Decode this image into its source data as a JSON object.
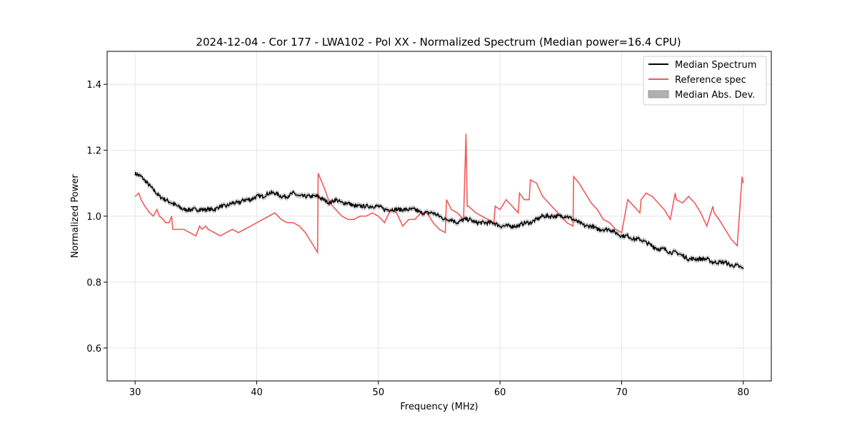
{
  "chart_data": {
    "type": "line",
    "title": "2024-12-04 - Cor 177 - LWA102 - Pol XX - Normalized Spectrum (Median power=16.4 CPU)",
    "xlabel": "Frequency (MHz)",
    "ylabel": "Normalized Power",
    "xlim": [
      27.7,
      82.3
    ],
    "ylim": [
      0.5,
      1.5
    ],
    "xticks": [
      30,
      40,
      50,
      60,
      70,
      80
    ],
    "yticks": [
      0.6,
      0.8,
      1.0,
      1.2,
      1.4
    ],
    "xtick_labels": [
      "30",
      "40",
      "50",
      "60",
      "70",
      "80"
    ],
    "ytick_labels": [
      "0.6",
      "0.8",
      "1.0",
      "1.2",
      "1.4"
    ],
    "grid": true,
    "legend_position": "top-right",
    "series": [
      {
        "name": "Median Spectrum",
        "color": "#000000",
        "x": [
          30,
          30.5,
          31,
          31.5,
          32,
          32.5,
          33,
          33.5,
          34,
          34.5,
          35,
          35.5,
          36,
          36.5,
          37,
          37.5,
          38,
          38.5,
          39,
          39.5,
          40,
          40.5,
          41,
          41.5,
          42,
          42.5,
          43,
          43.5,
          44,
          44.5,
          45,
          45.5,
          46,
          46.5,
          47,
          47.5,
          48,
          48.5,
          49,
          49.5,
          50,
          50.5,
          51,
          51.5,
          52,
          52.5,
          53,
          53.5,
          54,
          54.5,
          55,
          55.5,
          56,
          56.5,
          57,
          57.5,
          58,
          58.5,
          59,
          59.5,
          60,
          60.5,
          61,
          61.5,
          62,
          62.5,
          63,
          63.5,
          64,
          64.5,
          65,
          65.5,
          66,
          66.5,
          67,
          67.5,
          68,
          68.5,
          69,
          69.5,
          70,
          70.5,
          71,
          71.5,
          72,
          72.5,
          73,
          73.5,
          74,
          74.5,
          75,
          75.5,
          76,
          76.5,
          77,
          77.5,
          78,
          78.5,
          79,
          79.5,
          80
        ],
        "values": [
          1.13,
          1.12,
          1.1,
          1.08,
          1.06,
          1.05,
          1.04,
          1.03,
          1.02,
          1.02,
          1.02,
          1.02,
          1.02,
          1.02,
          1.03,
          1.03,
          1.04,
          1.04,
          1.05,
          1.05,
          1.06,
          1.06,
          1.07,
          1.07,
          1.06,
          1.06,
          1.07,
          1.06,
          1.06,
          1.06,
          1.06,
          1.05,
          1.04,
          1.05,
          1.04,
          1.04,
          1.03,
          1.03,
          1.03,
          1.03,
          1.03,
          1.02,
          1.02,
          1.02,
          1.02,
          1.02,
          1.02,
          1.01,
          1.01,
          1.01,
          1.0,
          0.99,
          0.99,
          0.98,
          0.99,
          0.99,
          0.98,
          0.98,
          0.98,
          0.98,
          0.97,
          0.97,
          0.97,
          0.97,
          0.98,
          0.98,
          0.99,
          1.0,
          1.0,
          1.0,
          1.0,
          1.0,
          0.99,
          0.98,
          0.97,
          0.97,
          0.96,
          0.96,
          0.96,
          0.95,
          0.94,
          0.94,
          0.93,
          0.93,
          0.92,
          0.91,
          0.9,
          0.9,
          0.89,
          0.89,
          0.88,
          0.87,
          0.87,
          0.87,
          0.87,
          0.86,
          0.86,
          0.86,
          0.85,
          0.85,
          0.84
        ]
      },
      {
        "name": "Reference spec",
        "color": "#f05a5a",
        "x": [
          30,
          30.3,
          30.5,
          30.8,
          31,
          31.2,
          31.5,
          31.8,
          32,
          32.3,
          32.5,
          32.8,
          33,
          33.1,
          33.5,
          34,
          34.5,
          35,
          35.3,
          35.5,
          35.8,
          36,
          36.5,
          37,
          37.5,
          38,
          38.5,
          39,
          39.5,
          40,
          40.5,
          41,
          41.5,
          42,
          42.5,
          43,
          43.5,
          44,
          44.5,
          45,
          45.05,
          45.5,
          46,
          46.5,
          47,
          47.5,
          48,
          48.5,
          49,
          49.5,
          50,
          50.5,
          51,
          51.5,
          52,
          52.5,
          53,
          53.5,
          54,
          54.5,
          55,
          55.5,
          55.6,
          56,
          56.5,
          57,
          57.2,
          57.3,
          57.4,
          58,
          58.5,
          59,
          59.5,
          59.6,
          60,
          60.5,
          61,
          61.5,
          61.6,
          62,
          62.4,
          62.5,
          63,
          63.5,
          64,
          64.5,
          65,
          65.5,
          66,
          66.05,
          66.5,
          67,
          67.5,
          68,
          68.5,
          69,
          69.5,
          70,
          70.5,
          71,
          71.5,
          71.6,
          72,
          72.5,
          73,
          73.5,
          74,
          74.4,
          74.5,
          75,
          75.5,
          76,
          76.5,
          77,
          77.5,
          77.6,
          78,
          78.5,
          79,
          79.5,
          79.9,
          80
        ],
        "values": [
          1.06,
          1.07,
          1.05,
          1.03,
          1.02,
          1.01,
          1.0,
          1.02,
          1.0,
          0.99,
          0.98,
          0.98,
          1.0,
          0.96,
          0.96,
          0.96,
          0.95,
          0.94,
          0.97,
          0.96,
          0.97,
          0.96,
          0.95,
          0.94,
          0.95,
          0.96,
          0.95,
          0.96,
          0.97,
          0.98,
          0.99,
          1.0,
          1.01,
          0.99,
          0.98,
          0.98,
          0.97,
          0.95,
          0.92,
          0.89,
          1.13,
          1.09,
          1.04,
          1.02,
          1.0,
          0.99,
          0.99,
          1.0,
          1.0,
          1.01,
          1.0,
          0.98,
          1.02,
          1.01,
          0.97,
          0.99,
          0.99,
          1.01,
          1.01,
          0.98,
          0.96,
          0.95,
          1.05,
          1.02,
          1.01,
          0.99,
          1.25,
          1.03,
          1.03,
          1.01,
          1.0,
          0.99,
          0.98,
          1.03,
          1.02,
          1.05,
          1.03,
          1.01,
          1.07,
          1.05,
          1.05,
          1.11,
          1.1,
          1.06,
          1.04,
          1.02,
          1.0,
          0.98,
          0.97,
          1.12,
          1.1,
          1.07,
          1.04,
          1.02,
          0.99,
          0.98,
          0.96,
          0.95,
          1.05,
          1.03,
          1.01,
          1.05,
          1.07,
          1.06,
          1.04,
          1.02,
          0.99,
          1.07,
          1.05,
          1.04,
          1.06,
          1.04,
          1.01,
          0.97,
          1.03,
          1.01,
          0.99,
          0.96,
          0.93,
          0.91,
          1.12,
          1.1
        ]
      },
      {
        "name": "Median Abs. Dev.",
        "color": "#b0b0b0",
        "kind": "band",
        "band_of": "Median Spectrum",
        "halfwidth": 0.008
      }
    ]
  }
}
